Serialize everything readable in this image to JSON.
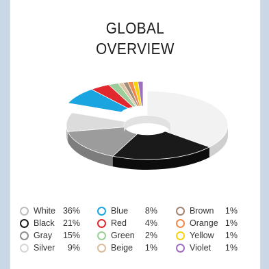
{
  "chart_data": {
    "type": "pie",
    "title_lines": [
      "GLOBAL",
      "OVERVIEW"
    ],
    "slices": [
      {
        "name": "White",
        "value": 36,
        "label": "36%",
        "color": "#f2f2f2",
        "side": "#cfcfcf"
      },
      {
        "name": "Black",
        "value": 21,
        "label": "21%",
        "color": "#1a1a1a",
        "side": "#0c0c0c"
      },
      {
        "name": "Gray",
        "value": 15,
        "label": "15%",
        "color": "#9c9c9c",
        "side": "#7d7d7d"
      },
      {
        "name": "Silver",
        "value": 9,
        "label": "9%",
        "color": "#dcdcdc",
        "side": "#bdbdbd"
      },
      {
        "name": "Blue",
        "value": 8,
        "label": "8%",
        "color": "#1aa4e0",
        "side": "#0d7fb2"
      },
      {
        "name": "Red",
        "value": 4,
        "label": "4%",
        "color": "#e0282e",
        "side": "#b01a1f"
      },
      {
        "name": "Green",
        "value": 2,
        "label": "2%",
        "color": "#9ccc9a",
        "side": "#78a876"
      },
      {
        "name": "Beige",
        "value": 1,
        "label": "1%",
        "color": "#ddc6a6",
        "side": "#b9a282"
      },
      {
        "name": "Brown",
        "value": 1,
        "label": "1%",
        "color": "#a48a78",
        "side": "#806654"
      },
      {
        "name": "Orange",
        "value": 1,
        "label": "1%",
        "color": "#ef8a4c",
        "side": "#c4662c"
      },
      {
        "name": "Yellow",
        "value": 1,
        "label": "1%",
        "color": "#f7d40e",
        "side": "#cdae00"
      },
      {
        "name": "Violet",
        "value": 1,
        "label": "1%",
        "color": "#a070c0",
        "side": "#7a4f98"
      }
    ],
    "legend_order": [
      [
        "White",
        "Blue",
        "Brown"
      ],
      [
        "Black",
        "Red",
        "Orange"
      ],
      [
        "Gray",
        "Green",
        "Yellow"
      ],
      [
        "Silver",
        "Beige",
        "Violet"
      ]
    ],
    "exploded": [
      "Blue",
      "Red",
      "Green",
      "Beige",
      "Brown",
      "Orange",
      "Yellow",
      "Violet"
    ],
    "style": "3d-donut"
  },
  "legend_ring_colors": {
    "White": "#bdbdbd",
    "Black": "#1a1a1a",
    "Gray": "#8f8f8f",
    "Silver": "#d6d6d6",
    "Blue": "#1aa4e0",
    "Red": "#e0282e",
    "Green": "#9ccc9a",
    "Beige": "#d9bd98",
    "Brown": "#9e8472",
    "Orange": "#ef8a4c",
    "Yellow": "#f7d40e",
    "Violet": "#a070c0"
  }
}
